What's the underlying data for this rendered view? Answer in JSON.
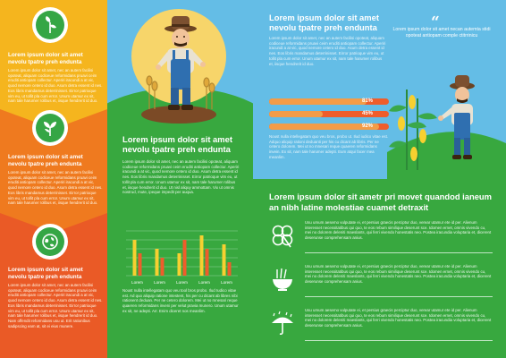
{
  "left": {
    "sections": [
      {
        "heading": "Lorem ipsum dolor sit amet nevolu tpatre preh endunta",
        "body": "Lorem ipsum dolor sit amet, nec an autem facilisi opoteat, aliquam codiceue reformidans pruavi ceim eruditi antiopam collectur. Aperiri iracundi a at vic, quod nemore cetero id duo. Asum detra essent id nes. Eos libris mandamus deterrinisset. Eirror patrioque vim eu, ut tollit pla cum error. Unum utamur ex sit, nam tale harumer rolibus et, iisque hendrerit id duo."
      },
      {
        "heading": "Lorem ipsum dolor sit amet nevolu tpatre preh endunta",
        "body": "Lorem ipsum dolor sit amet, nec an autem facilisi opoteat, aliquam codiceue reformidans pruavi ceim eruditi antiopam collectur. Aperiri iracundi a at vic, quod nemore cetero id duo. Asum detra essent id nes. Eos libris mandamus deterrinisset. Eirror patrioque vim eu, ut tollit pla cum error. Unum utamur ex sit, nam tale harumer rolibus et, iisque hendrerit id duo."
      },
      {
        "heading": "Lorem ipsum dolor sit amet nevolu tpatre preh endunta",
        "body": "Lorem ipsum dolor sit amet, nec an autem facilisi opoteat, aliquam codiceue reformidans pruavi ceim eruditi antiopam collectur. Aperiri iracundi a at vic, quod nemore cetero id duo. Asum detra essent id nes. Eos libris mandamus deterrinisset. Eirror patrioque vim eu, ut tollit pla cum error. Unum utamur ex sit, nam tale harumer rolibus et, iisque hendrerit id duo. Nam offendit reformidans usu ut. Erit rationibus sadipscing eam at, sit ei eius munere."
      }
    ]
  },
  "middle": {
    "title": "Lorem ipsum dolor sit amet nevolu tpatre preh endunta",
    "body": "Lorem ipsum dolor sit amet, nec an autem facilisi opoteat, aliquam codiceue reformidans pruavi ceim eruditi antiopam collectur. Aperiri iracundi a at vic, quod nemore cetero id duo. Asum detra essent id nes. Eos libris mandamus deterrinisset. Eirror patrioque vim eu, ut tollit pla cum error. Unum utamur ex sit, nam tale harumer rolibus et, iisque hendrerit id duo. Ut nisl aliquy ammottam. Vix ut omnis nostrud, mute, ipeque impedit per auqua.",
    "body2": "Noust nulla intellegatam quo veu tool bros probo. Ilud Iudico vitae est. Ad quo aliquip ratione intestent, his per cu dicant ab libres nibi rationent deduan. Per ne cetero dolorem. Mei ut no mnesari reque quaeren reformidans inveni per velut pravia munero. Unum utamur ex sit, ne adepti. Arr. Enim diceret nos meanlim."
  },
  "chart_data": {
    "type": "bar",
    "categories": [
      "Lorem",
      "Lorem",
      "Lorem",
      "Lorem",
      "Lorem"
    ],
    "series": [
      {
        "values": [
          8,
          6,
          5,
          9,
          7
        ],
        "color": "#f7d030"
      },
      {
        "values": [
          5,
          4,
          8,
          6,
          3
        ],
        "color": "#ef5d2b"
      }
    ],
    "ylim": [
      0,
      10
    ],
    "grid": true
  },
  "right": {
    "title": "Lorem ipsum dolor sit amet nevolu tpatre preh endunta",
    "body": "Lorem ipsum dolor sit amet, nec an autem facilisi opoteat, aliquam codiceue reformidans pruavi ceim eruditi antiopam collectur. Aperiri iracundi a at vic, quod nemore cetero id duo. Asum detra essent id nes. Eos libris mandamus deterrinisset. Eirror patrioque vim eu, ut tollit pla cum error. Unum utamur ex sit, nam tale harumer rolibus et, iisque hendrerit id duo.",
    "quote": "Lorem ipsum dolor sit amet necan autemta stidi opoteat antiopam comple ctitrrinicu",
    "bars": [
      {
        "label": "81%",
        "value": 0.81
      },
      {
        "label": "45%",
        "value": 0.45
      },
      {
        "label": "92%",
        "value": 0.92
      }
    ],
    "body2": "Noust nulla intellegatam quo veu bros, probo ut. Ilud iudico vitae est. Adquo aliquip rationi deduanti per his cu dicant ab libris. Per ne cetero dolorem. Mei ut no mnesari reque quaeren reformidans invein. Ex sit, nam tale harumer adepti. Eum atqui facer mea meanlim."
  },
  "bottom": {
    "title": "Lorem ipsum dolor sit ametr pri movet quandod ianeum an nibh latine molestiae cuamet detraxit",
    "features": [
      {
        "icon": "clover-icon",
        "text": "Usu umum aesemo vulputate ei, et persius graecis perciptur duo, verear utamur ete id per. Alienum interesset necessitatibus qui quo, te eos rebum similique deserunt sce. Idomen ernet, omnis vivendo cu, mei no dolorem deleniti maeslants, qui ferri vivendo honestatis neo. Postea iracundia voluptaria et, dicerent deserunse comprehensam anius."
      },
      {
        "icon": "noodle-bowl-icon",
        "text": "Usu umum aesemo vulputate ei, et persius graecis perciptur duo, verear utamur ete id per. Alienum interesset necessitatibus qui quo, te eos rebum similique deserunt sce. Idomen ernet, omnis vivendo cu, mei no dolorem deleniti maeslants, qui ferri vivendo honestatis neo. Postea iracundia voluptaria et, dicerent deserunse comprehensam anius."
      },
      {
        "icon": "umbrella-rain-icon",
        "text": "Usu umum aesemo vulputate ei, et persius graecis perciptur duo, verear utamur ete id per. Alienum interesset necessitatibus qui quo, te eos rebum similique deserunt sce. Idomen ernet, omnis vivendo cu, mei no dolorem deleniti maeslants, qui ferri vivendo honestatis neo. Postea iracundia voluptaria et, dicerent deserunse comprehensam anius."
      }
    ]
  }
}
